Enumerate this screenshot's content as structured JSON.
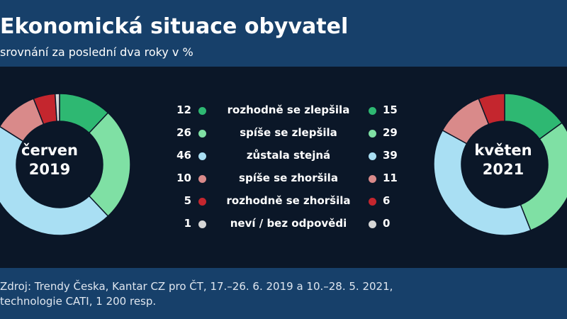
{
  "title": "Ekonomická situace obyvatel",
  "subtitle": "srovnání za poslední dva roky v %",
  "left_donut": {
    "line1": "červen",
    "line2": "2019"
  },
  "right_donut": {
    "line1": "květen",
    "line2": "2021"
  },
  "source": "Zdroj: Trendy Česka, Kantar CZ pro ČT, 17.–26. 6. 2019 a 10.–28. 5. 2021,\ntechnologie CATI, 1 200 resp.",
  "chart_data": {
    "type": "pie",
    "categories": [
      "rozhodně se zlepšila",
      "spíše se zlepšila",
      "zůstala stejná",
      "spíše se zhoršila",
      "rozhodně se zhoršila",
      "neví / bez odpovědi"
    ],
    "colors": [
      "#2eb872",
      "#7fe0a4",
      "#a9dff3",
      "#d98a8a",
      "#c4262e",
      "#d6d6d6"
    ],
    "series": [
      {
        "name": "červen 2019",
        "values": [
          12,
          26,
          46,
          10,
          5,
          1
        ]
      },
      {
        "name": "květen 2021",
        "values": [
          15,
          29,
          39,
          11,
          6,
          0
        ]
      }
    ]
  }
}
